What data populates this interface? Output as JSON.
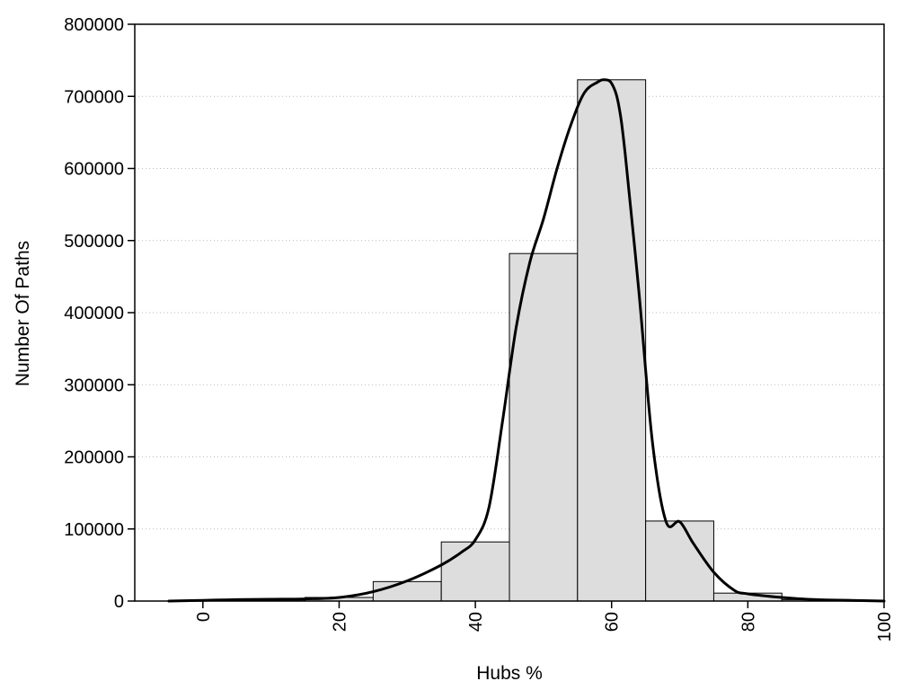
{
  "chart_data": {
    "type": "bar",
    "title": "",
    "xlabel": "Hubs %",
    "ylabel": "Number Of Paths",
    "xlim": [
      -10,
      100
    ],
    "ylim": [
      0,
      800000
    ],
    "x_ticks": [
      0,
      20,
      40,
      60,
      80,
      100
    ],
    "x_tick_labels": [
      "0",
      "20",
      "40",
      "60",
      "80",
      "100"
    ],
    "y_ticks": [
      0,
      100000,
      200000,
      300000,
      400000,
      500000,
      600000,
      700000,
      800000
    ],
    "y_tick_labels": [
      "0",
      "100000",
      "200000",
      "300000",
      "400000",
      "500000",
      "600000",
      "700000",
      "800000"
    ],
    "grid": "horizontal dotted",
    "bin_width": 10,
    "bins": [
      {
        "center": 0,
        "value": 1000
      },
      {
        "center": 10,
        "value": 1500
      },
      {
        "center": 20,
        "value": 5000
      },
      {
        "center": 30,
        "value": 27000
      },
      {
        "center": 40,
        "value": 82000
      },
      {
        "center": 50,
        "value": 482000
      },
      {
        "center": 60,
        "value": 723000
      },
      {
        "center": 70,
        "value": 111000
      },
      {
        "center": 80,
        "value": 11000
      },
      {
        "center": 90,
        "value": 2000
      }
    ],
    "curve": {
      "x": [
        -5,
        0,
        5,
        10,
        15,
        20,
        25,
        30,
        35,
        38,
        40,
        42,
        44,
        46,
        48,
        50,
        52,
        54,
        56,
        58,
        59,
        60,
        61,
        62,
        64,
        66,
        68,
        70,
        72,
        75,
        78,
        80,
        85,
        90,
        95,
        100
      ],
      "y": [
        0,
        1000,
        2000,
        2500,
        3000,
        5000,
        13000,
        28000,
        50000,
        68000,
        85000,
        130000,
        250000,
        380000,
        470000,
        530000,
        600000,
        660000,
        705000,
        720000,
        723000,
        718000,
        690000,
        620000,
        430000,
        220000,
        110000,
        110000,
        80000,
        40000,
        15000,
        10000,
        5000,
        2000,
        1000,
        0
      ]
    },
    "colors": {
      "bar_fill": "#dddddd",
      "bar_stroke": "#000000",
      "curve": "#000000",
      "grid": "#bbbbbb"
    }
  }
}
